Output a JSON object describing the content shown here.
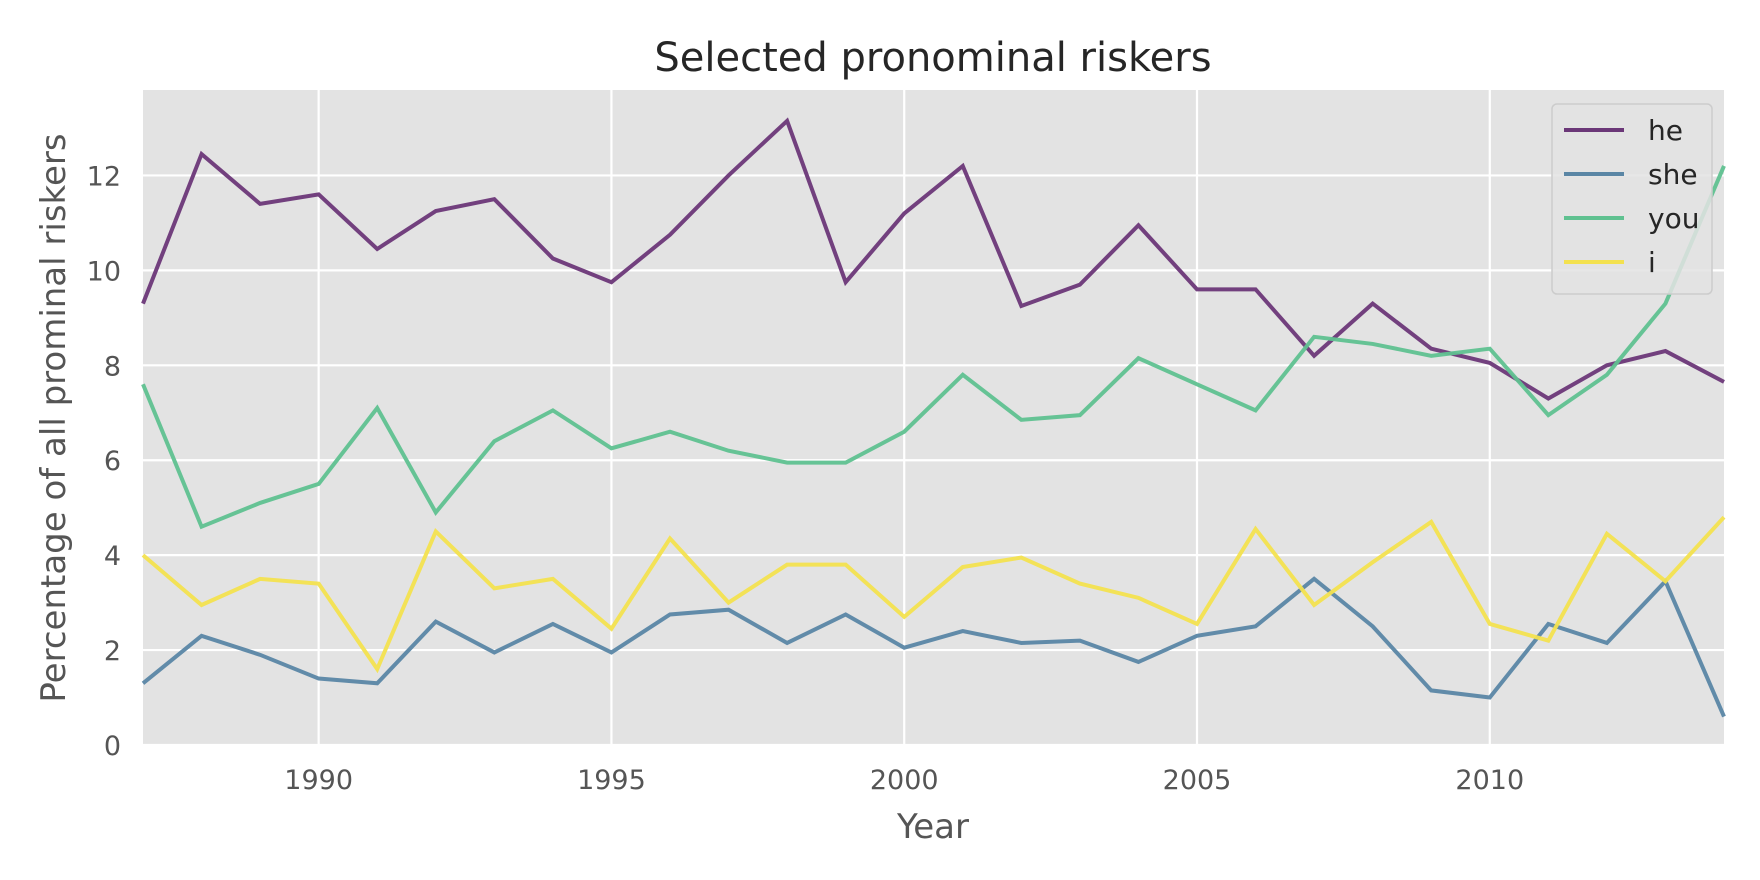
{
  "chart_data": {
    "type": "line",
    "title": "Selected pronominal riskers",
    "xlabel": "Year",
    "ylabel": "Percentage of all prominal riskers",
    "xlim": [
      1987,
      2014
    ],
    "ylim": [
      0,
      13.8
    ],
    "xticks": [
      1990,
      1995,
      2000,
      2005,
      2010
    ],
    "yticks": [
      0,
      2,
      4,
      6,
      8,
      10,
      12
    ],
    "grid": true,
    "legend_position": "top-right",
    "x": [
      1987,
      1988,
      1989,
      1990,
      1991,
      1992,
      1993,
      1994,
      1995,
      1996,
      1997,
      1998,
      1999,
      2000,
      2001,
      2002,
      2003,
      2004,
      2005,
      2006,
      2007,
      2008,
      2009,
      2010,
      2011,
      2012,
      2013,
      2014
    ],
    "series": [
      {
        "name": "he",
        "color": "#6b3778",
        "values": [
          9.3,
          12.45,
          11.4,
          11.6,
          10.45,
          11.25,
          11.5,
          10.25,
          9.75,
          10.75,
          12.0,
          13.15,
          9.75,
          11.2,
          12.2,
          9.25,
          9.7,
          10.95,
          9.6,
          9.6,
          8.2,
          9.3,
          8.35,
          8.05,
          7.3,
          8.0,
          8.3,
          7.65
        ]
      },
      {
        "name": "she",
        "color": "#5a86a5",
        "values": [
          1.3,
          2.3,
          1.9,
          1.4,
          1.3,
          2.6,
          1.95,
          2.55,
          1.95,
          2.75,
          2.85,
          2.15,
          2.75,
          2.05,
          2.4,
          2.15,
          2.2,
          1.75,
          2.3,
          2.5,
          3.5,
          2.5,
          1.15,
          1.0,
          2.55,
          2.15,
          3.45,
          0.6
        ]
      },
      {
        "name": "you",
        "color": "#5fc190",
        "values": [
          7.6,
          4.6,
          5.1,
          5.5,
          7.1,
          4.9,
          6.4,
          7.05,
          6.25,
          6.6,
          6.2,
          5.95,
          5.95,
          6.6,
          7.8,
          6.85,
          6.95,
          8.15,
          7.6,
          7.05,
          8.6,
          8.45,
          8.2,
          8.35,
          6.95,
          7.8,
          9.3,
          12.2
        ]
      },
      {
        "name": "i",
        "color": "#f3e14f",
        "values": [
          4.0,
          2.95,
          3.5,
          3.4,
          1.6,
          4.5,
          3.3,
          3.5,
          2.45,
          4.35,
          3.0,
          3.8,
          3.8,
          2.7,
          3.75,
          3.95,
          3.4,
          3.1,
          2.55,
          4.55,
          2.95,
          3.85,
          4.7,
          2.55,
          2.2,
          4.45,
          3.45,
          4.8
        ]
      }
    ]
  }
}
